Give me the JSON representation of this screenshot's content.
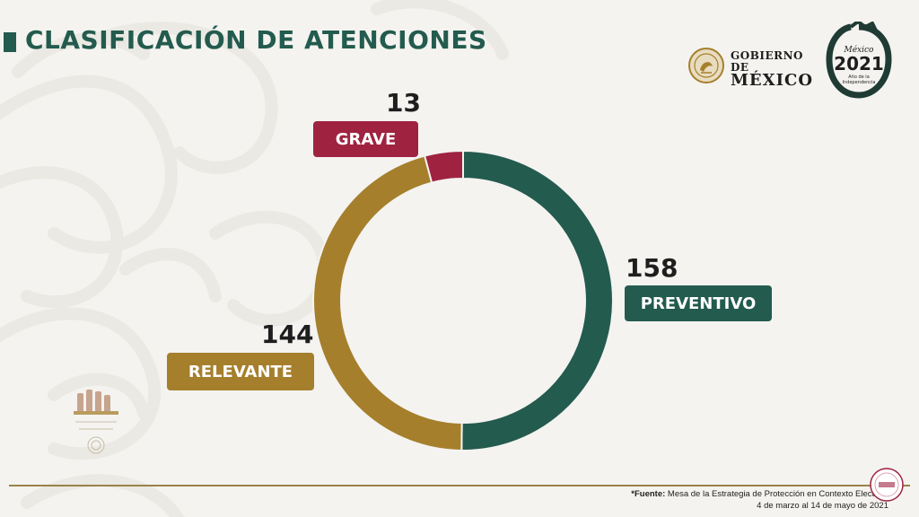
{
  "title": "CLASIFICACIÓN DE ATENCIONES",
  "header": {
    "gov_line1": "GOBIERNO DE",
    "gov_line2": "MÉXICO",
    "logo2021_top": "México",
    "logo2021_year": "2021",
    "logo2021_sub1": "Año de la",
    "logo2021_sub2": "Independencia"
  },
  "chart_data": {
    "type": "pie",
    "categories": [
      "PREVENTIVO",
      "RELEVANTE",
      "GRAVE"
    ],
    "values": [
      158,
      144,
      13
    ],
    "value_labels": [
      "158",
      "144",
      "13"
    ],
    "colors": [
      "#235b4e",
      "#a57f2c",
      "#9f2241"
    ],
    "donut": true,
    "title": "CLASIFICACIÓN DE ATENCIONES"
  },
  "footer": {
    "source_bold": "*Fuente:",
    "source_text": " Mesa de la Estrategia de Protección en Contexto Electoral",
    "date_range": "4 de marzo al 14 de mayo de 2021"
  },
  "colors": {
    "accent_green": "#235b4e",
    "accent_gold": "#a57f2c",
    "accent_red": "#9f2241",
    "rule_gold": "#9a8349"
  },
  "icons": [
    "mexico-emblem-icon",
    "mexico-2021-logo-icon",
    "historical-figures-emblem-icon",
    "corner-seal-icon"
  ]
}
